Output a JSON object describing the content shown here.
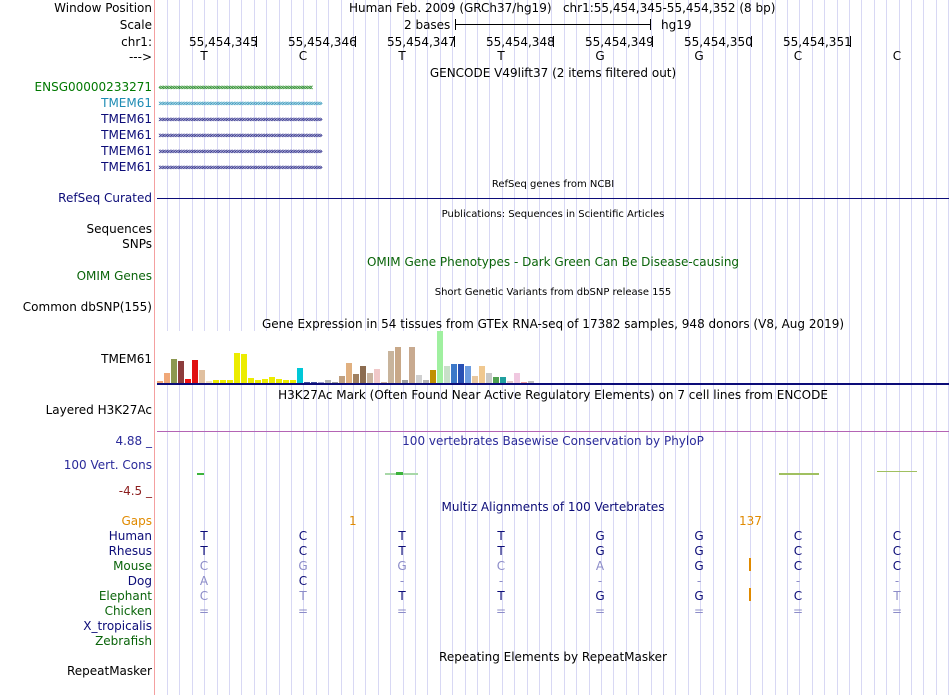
{
  "header": {
    "window_position_label": "Window Position",
    "window_position_value": "Human Feb. 2009 (GRCh37/hg19)   chr1:55,454,345-55,454,352 (8 bp)",
    "scale_label": "Scale",
    "scale_value": "2 bases",
    "scale_assembly": "hg19",
    "chrom_label": "chr1:",
    "strand_label": "--->",
    "positions": [
      "55,454,345",
      "55,454,346",
      "55,454,347",
      "55,454,348",
      "55,454,349",
      "55,454,350",
      "55,454,351"
    ],
    "bases": [
      "T",
      "C",
      "T",
      "T",
      "G",
      "G",
      "C",
      "C"
    ]
  },
  "tracks": {
    "gencode_title": "GENCODE V49lift37 (2 items filtered out)",
    "gencode_items": [
      {
        "label": "ENSG00000233271",
        "color": "#007800",
        "arrows": "‹‹‹‹‹‹‹‹‹‹‹‹‹‹‹‹‹‹‹‹‹‹‹‹‹‹‹‹‹‹‹‹‹‹‹‹‹‹‹‹‹‹‹‹‹‹‹‹‹‹‹‹‹‹‹‹‹‹‹‹‹‹‹‹‹‹‹‹‹‹‹‹‹‹‹‹‹‹‹‹‹‹‹‹‹‹‹‹‹‹‹‹‹‹‹‹"
      },
      {
        "label": "TMEM61",
        "color": "#1e8cb4",
        "arrows": "››››››››››››››››››››››››››››››››››››››››››››››››››››››››››››››››››››››››››››››››››››››››››››››››››››››"
      },
      {
        "label": "TMEM61",
        "color": "#0c0c78",
        "arrows": "››››››››››››››››››››››››››››››››››››››››››››››››››››››››››››››››››››››››››››››››››››››››››››››››››››››"
      },
      {
        "label": "TMEM61",
        "color": "#0c0c78",
        "arrows": "››››››››››››››››››››››››››››››››››››››››››››››››››››››››››››››››››››››››››››››››››››››››››››››››››››››"
      },
      {
        "label": "TMEM61",
        "color": "#0c0c78",
        "arrows": "››››››››››››››››››››››››››››››››››››››››››››››››››››››››››››››››››››››››››››››››››››››››››››››››››››››"
      },
      {
        "label": "TMEM61",
        "color": "#0c0c78",
        "arrows": "››››››››››››››››››››››››››››››››››››››››››››››››››››››››››››››››››››››››››››››››››››››››››››››››››››››"
      }
    ],
    "refseq_title": "RefSeq genes from NCBI",
    "refseq_label": "RefSeq Curated",
    "publications_title": "Publications: Sequences in Scientific Articles",
    "sequences_label": "Sequences",
    "snps_label": "SNPs",
    "omim_title": "OMIM Gene Phenotypes - Dark Green Can Be Disease-causing",
    "omim_label": "OMIM Genes",
    "dbsnp_title": "Short Genetic Variants from dbSNP release 155",
    "dbsnp_label": "Common dbSNP(155)",
    "gtex_title": "Gene Expression in 54 tissues from GTEx RNA-seq of 17382 samples, 948 donors (V8, Aug 2019)",
    "gtex_label": "TMEM61",
    "gtex_bars": [
      {
        "v": 2,
        "c": "#f0a878"
      },
      {
        "v": 10,
        "c": "#f0a878"
      },
      {
        "v": 24,
        "c": "#8c9850"
      },
      {
        "v": 22,
        "c": "#8c3c3c"
      },
      {
        "v": 4,
        "c": "#f01010"
      },
      {
        "v": 23,
        "c": "#e01010"
      },
      {
        "v": 13,
        "c": "#e0c0a0"
      },
      {
        "v": 2,
        "c": "#f0e0c0"
      },
      {
        "v": 3,
        "c": "#ecec00"
      },
      {
        "v": 3,
        "c": "#ecec00"
      },
      {
        "v": 3,
        "c": "#ecec00"
      },
      {
        "v": 30,
        "c": "#ecec00"
      },
      {
        "v": 29,
        "c": "#ecec00"
      },
      {
        "v": 5,
        "c": "#ecec00"
      },
      {
        "v": 3,
        "c": "#ecec00"
      },
      {
        "v": 4,
        "c": "#ecec00"
      },
      {
        "v": 6,
        "c": "#ecec00"
      },
      {
        "v": 4,
        "c": "#ecec00"
      },
      {
        "v": 3,
        "c": "#ecec00"
      },
      {
        "v": 3,
        "c": "#ecec00"
      },
      {
        "v": 15,
        "c": "#00c8d8"
      },
      {
        "v": 1,
        "c": "#4050a0"
      },
      {
        "v": 1,
        "c": "#4050a0"
      },
      {
        "v": 1,
        "c": "#a0a0d0"
      },
      {
        "v": 3,
        "c": "#b4b4b4"
      },
      {
        "v": 1,
        "c": "#a0a0a0"
      },
      {
        "v": 7,
        "c": "#c0a080"
      },
      {
        "v": 20,
        "c": "#e0b080"
      },
      {
        "v": 9,
        "c": "#a08060"
      },
      {
        "v": 17,
        "c": "#8c6c50"
      },
      {
        "v": 10,
        "c": "#c8b4a0"
      },
      {
        "v": 14,
        "c": "#f0c8c8"
      },
      {
        "v": 1,
        "c": "#d0b4a0"
      },
      {
        "v": 32,
        "c": "#c8b49c"
      },
      {
        "v": 36,
        "c": "#c8a888"
      },
      {
        "v": 3,
        "c": "#a0a0a0"
      },
      {
        "v": 36,
        "c": "#c8aa90"
      },
      {
        "v": 8,
        "c": "#d0d0d0"
      },
      {
        "v": 3,
        "c": "#b4b4b4"
      },
      {
        "v": 13,
        "c": "#c09000"
      },
      {
        "v": 52,
        "c": "#a0f0a0"
      },
      {
        "v": 17,
        "c": "#c8e0c8"
      },
      {
        "v": 19,
        "c": "#3c78c8"
      },
      {
        "v": 19,
        "c": "#2850b4"
      },
      {
        "v": 17,
        "c": "#6c9ce0"
      },
      {
        "v": 7,
        "c": "#e8c8a0"
      },
      {
        "v": 17,
        "c": "#f0c890"
      },
      {
        "v": 10,
        "c": "#c8c8c8"
      },
      {
        "v": 6,
        "c": "#50a050"
      },
      {
        "v": 6,
        "c": "#20a0a0"
      },
      {
        "v": 2,
        "c": "#e0c8c8"
      },
      {
        "v": 10,
        "c": "#f0c8e0"
      },
      {
        "v": 1,
        "c": "#f0a0a0"
      },
      {
        "v": 2,
        "c": "#c0c0c0"
      }
    ],
    "h3k27ac_title": "H3K27Ac Mark (Often Found Near Active Regulatory Elements) on 7 cell lines from ENCODE",
    "h3k27ac_label": "Layered H3K27Ac",
    "cons_title": "100 vertebrates Basewise Conservation by PhyloP",
    "cons_label": "100 Vert. Cons",
    "cons_max": "4.88 _",
    "cons_min": "-4.5 _",
    "multiz_title": "Multiz Alignments of 100 Vertebrates",
    "gaps_label": "Gaps",
    "gap_values": [
      "1",
      "137"
    ],
    "repeat_title": "Repeating Elements by RepeatMasker",
    "repeat_label": "RepeatMasker"
  },
  "alignment": [
    {
      "species": "Human",
      "color": "#0c0c78",
      "bases": [
        "T",
        "C",
        "T",
        "T",
        "G",
        "G",
        "C",
        "C"
      ],
      "base_color": "#0c0c78"
    },
    {
      "species": "Rhesus",
      "color": "#0c0c78",
      "bases": [
        "T",
        "C",
        "T",
        "T",
        "G",
        "G",
        "C",
        "C"
      ],
      "base_color": "#0c0c78"
    },
    {
      "species": "Mouse",
      "color": "#0a640a",
      "bases": [
        "C",
        "G",
        "G",
        "C",
        "A",
        "G",
        "C",
        "C"
      ],
      "base_color": "#0c0c78"
    },
    {
      "species": "Dog",
      "color": "#0c0c78",
      "bases": [
        "A",
        "C",
        "-",
        "-",
        "-",
        "-",
        "-",
        "-"
      ],
      "base_color": "#0c0c78"
    },
    {
      "species": "Elephant",
      "color": "#0a640a",
      "bases": [
        "C",
        "T",
        "T",
        "T",
        "G",
        "G",
        "C",
        "T"
      ],
      "base_color": "#0c0c78"
    },
    {
      "species": "Chicken",
      "color": "#0a640a",
      "bases": [
        "=",
        "=",
        "=",
        "=",
        "=",
        "=",
        "=",
        "="
      ],
      "base_color": "#8c8cc8"
    },
    {
      "species": "X_tropicalis",
      "color": "#0c0c78",
      "bases": [
        "",
        "",
        "",
        "",
        "",
        "",
        "",
        ""
      ],
      "base_color": "#0c0c78"
    },
    {
      "species": "Zebrafish",
      "color": "#0a640a",
      "bases": [
        "",
        "",
        "",
        "",
        "",
        "",
        "",
        ""
      ],
      "base_color": "#0c0c78"
    }
  ],
  "colors": {
    "gencode_green": "#007800",
    "navy": "#0c0c78",
    "gaps_orange": "#e08a00",
    "cons_blue": "#2a2a9a",
    "cons_min_red": "#8c1e1e",
    "h3k27ac_line": "#b464b4"
  }
}
